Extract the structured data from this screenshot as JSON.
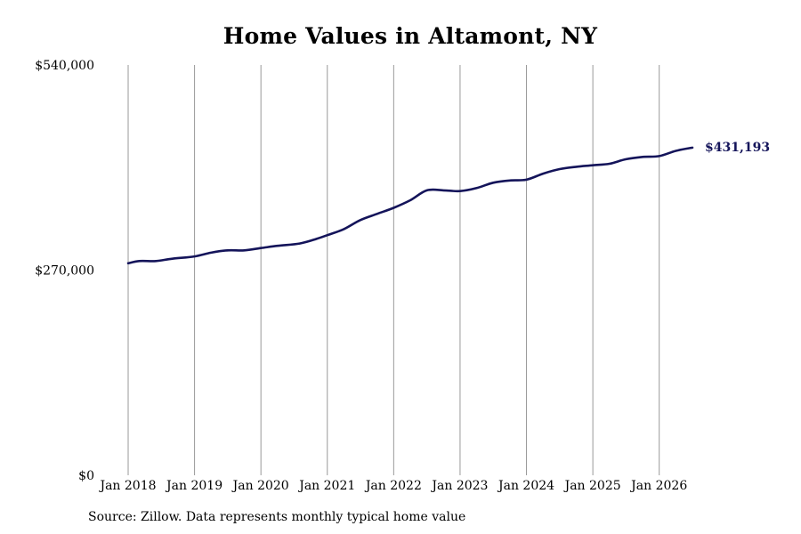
{
  "chart_data": {
    "type": "line",
    "title": "Home Values in Altamont, NY",
    "xlabel": "",
    "ylabel": "",
    "ylim": [
      0,
      540000
    ],
    "y_ticks": [
      {
        "value": 0,
        "label": "$0"
      },
      {
        "value": 270000,
        "label": "$270,000"
      },
      {
        "value": 540000,
        "label": "$540,000"
      }
    ],
    "x_ticks": [
      {
        "date": "2018-01",
        "label": "Jan 2018"
      },
      {
        "date": "2019-01",
        "label": "Jan 2019"
      },
      {
        "date": "2020-01",
        "label": "Jan 2020"
      },
      {
        "date": "2021-01",
        "label": "Jan 2021"
      },
      {
        "date": "2022-01",
        "label": "Jan 2022"
      },
      {
        "date": "2023-01",
        "label": "Jan 2023"
      },
      {
        "date": "2024-01",
        "label": "Jan 2024"
      },
      {
        "date": "2025-01",
        "label": "Jan 2025"
      },
      {
        "date": "2026-01",
        "label": "Jan 2026"
      }
    ],
    "xlim": [
      "2018-01",
      "2026-07"
    ],
    "grid": {
      "vertical": true,
      "horizontal": false
    },
    "legend": "none",
    "colors": {
      "line": "#14145a",
      "grid": "#999999",
      "end_label": "#14145a"
    },
    "series": [
      {
        "points": [
          {
            "date": "2018-01",
            "value": 279000
          },
          {
            "date": "2018-03",
            "value": 282000
          },
          {
            "date": "2018-06",
            "value": 282000
          },
          {
            "date": "2018-09",
            "value": 285000
          },
          {
            "date": "2019-01",
            "value": 288000
          },
          {
            "date": "2019-04",
            "value": 293000
          },
          {
            "date": "2019-07",
            "value": 296000
          },
          {
            "date": "2019-10",
            "value": 296000
          },
          {
            "date": "2020-01",
            "value": 299000
          },
          {
            "date": "2020-04",
            "value": 302000
          },
          {
            "date": "2020-08",
            "value": 305000
          },
          {
            "date": "2020-11",
            "value": 311000
          },
          {
            "date": "2021-01",
            "value": 316000
          },
          {
            "date": "2021-04",
            "value": 324000
          },
          {
            "date": "2021-07",
            "value": 336000
          },
          {
            "date": "2021-10",
            "value": 344000
          },
          {
            "date": "2022-01",
            "value": 352000
          },
          {
            "date": "2022-04",
            "value": 362000
          },
          {
            "date": "2022-07",
            "value": 375000
          },
          {
            "date": "2022-10",
            "value": 375000
          },
          {
            "date": "2023-01",
            "value": 374000
          },
          {
            "date": "2023-04",
            "value": 378000
          },
          {
            "date": "2023-07",
            "value": 385000
          },
          {
            "date": "2023-10",
            "value": 388000
          },
          {
            "date": "2024-01",
            "value": 389000
          },
          {
            "date": "2024-04",
            "value": 397000
          },
          {
            "date": "2024-07",
            "value": 403000
          },
          {
            "date": "2024-10",
            "value": 406000
          },
          {
            "date": "2025-01",
            "value": 408000
          },
          {
            "date": "2025-04",
            "value": 410000
          },
          {
            "date": "2025-07",
            "value": 416000
          },
          {
            "date": "2025-10",
            "value": 419000
          },
          {
            "date": "2026-01",
            "value": 420000
          },
          {
            "date": "2026-04",
            "value": 427000
          },
          {
            "date": "2026-07",
            "value": 431193
          }
        ]
      }
    ],
    "end_label": "$431,193",
    "source": "Source: Zillow. Data represents monthly typical home value"
  }
}
